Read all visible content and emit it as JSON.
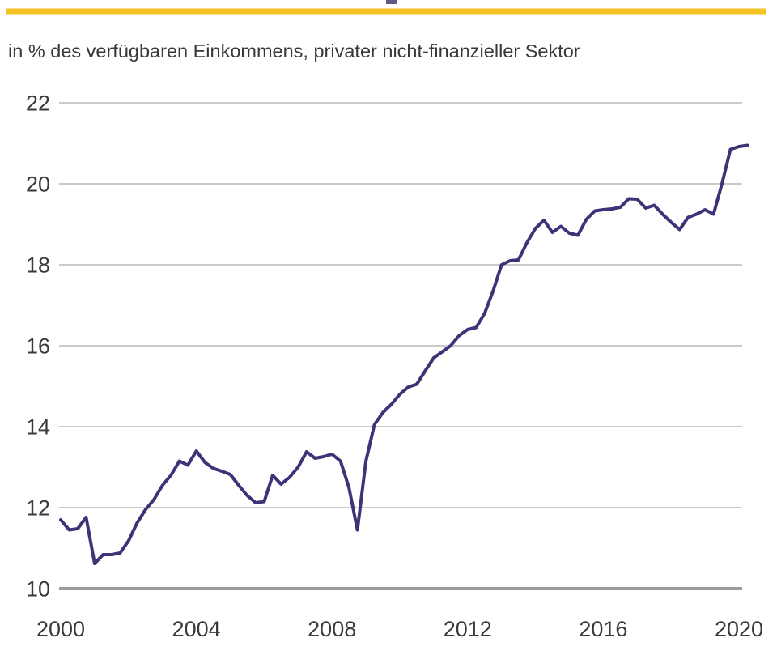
{
  "page": {
    "accent_rule_color": "#f4c427",
    "title_fragment_color": "#5c5a87",
    "background": "#ffffff"
  },
  "chart_data": {
    "type": "line",
    "title": "",
    "subtitle": "in % des verfügbaren Einkommens, privater nicht-finanzieller Sektor",
    "x_unit": "quarterly",
    "x_start": 2000,
    "x_step": 0.25,
    "series": [
      {
        "name": "privater nicht-finanzieller Sektor",
        "color": "#3d3478",
        "values": [
          11.7,
          11.45,
          11.48,
          11.76,
          10.62,
          10.84,
          10.84,
          10.88,
          11.18,
          11.62,
          11.95,
          12.2,
          12.55,
          12.8,
          13.15,
          13.05,
          13.4,
          13.12,
          12.97,
          12.9,
          12.82,
          12.55,
          12.3,
          12.12,
          12.15,
          12.8,
          12.58,
          12.75,
          13.0,
          13.38,
          13.22,
          13.26,
          13.32,
          13.15,
          12.5,
          11.45,
          13.15,
          14.05,
          14.35,
          14.55,
          14.8,
          14.98,
          15.05,
          15.38,
          15.7,
          15.85,
          16.0,
          16.25,
          16.4,
          16.45,
          16.8,
          17.35,
          18.0,
          18.1,
          18.12,
          18.55,
          18.9,
          19.1,
          18.8,
          18.95,
          18.78,
          18.73,
          19.12,
          19.33,
          19.36,
          19.38,
          19.42,
          19.63,
          19.62,
          19.4,
          19.47,
          19.25,
          19.05,
          18.87,
          19.17,
          19.25,
          19.36,
          19.25,
          20.0,
          20.85,
          20.92,
          20.95
        ]
      }
    ],
    "x_ticks": [
      "2000",
      "2004",
      "2008",
      "2012",
      "2016",
      "2020"
    ],
    "y_ticks": [
      22,
      20,
      18,
      16,
      14,
      12,
      10
    ],
    "xlim": [
      2000,
      2020.5
    ],
    "ylim": [
      10,
      22
    ],
    "grid": "horizontal",
    "legend": "none",
    "axis_text_color": "#3a3a3a",
    "grid_color": "#cacaca",
    "baseline_color": "#9b9b9b"
  }
}
